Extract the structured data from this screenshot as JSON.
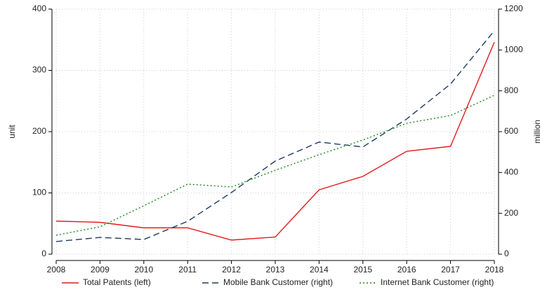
{
  "chart_data": {
    "type": "line",
    "x": [
      2008,
      2009,
      2010,
      2011,
      2012,
      2013,
      2014,
      2015,
      2016,
      2017,
      2018
    ],
    "xlim": [
      2008,
      2018
    ],
    "xticks": [
      2008,
      2009,
      2010,
      2011,
      2012,
      2013,
      2014,
      2015,
      2016,
      2017,
      2018
    ],
    "ylabel": "unit",
    "ylim": [
      0,
      400
    ],
    "yticks": [
      0,
      100,
      200,
      300,
      400
    ],
    "y2label": "million",
    "y2lim": [
      0,
      1200
    ],
    "y2ticks": [
      0,
      200,
      400,
      600,
      800,
      1000,
      1200
    ],
    "grid": true,
    "legend": "bottom",
    "series": [
      {
        "name": "Total Patents (left)",
        "color": "#e41a1c",
        "dash": "solid",
        "values": [
          54,
          52,
          43,
          43,
          23,
          28,
          105,
          127,
          168,
          176,
          346
        ]
      },
      {
        "name": "Mobile Bank Customer (right)",
        "color": "#1f3a5f",
        "dash": "dashed",
        "axis": "y2",
        "values": [
          62,
          82,
          72,
          161,
          302,
          456,
          549,
          525,
          662,
          833,
          1094
        ]
      },
      {
        "name": "Internet Bank Customer (right)",
        "color": "#1a8a1a",
        "dash": "dotted",
        "axis": "y2",
        "values": [
          93,
          134,
          237,
          343,
          329,
          411,
          487,
          559,
          641,
          679,
          778
        ]
      }
    ]
  }
}
